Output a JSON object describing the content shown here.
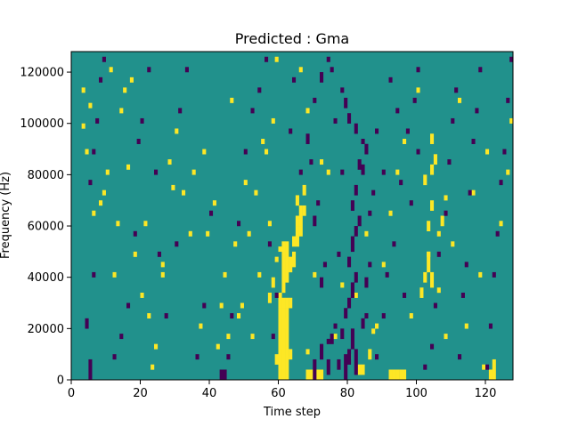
{
  "chart_data": {
    "type": "heatmap",
    "title": "Predicted : Gma",
    "xlabel": "Time step",
    "ylabel": "Frequency (Hz)",
    "xlim": [
      0,
      128
    ],
    "ylim": [
      0,
      128000
    ],
    "xticks": [
      0,
      20,
      40,
      60,
      80,
      100,
      120
    ],
    "xtick_labels": [
      "0",
      "20",
      "40",
      "60",
      "80",
      "100",
      "120"
    ],
    "yticks": [
      0,
      20000,
      40000,
      60000,
      80000,
      100000,
      120000
    ],
    "ytick_labels": [
      "0",
      "20000",
      "40000",
      "60000",
      "80000",
      "100000",
      "120000"
    ],
    "rows": 64,
    "cols": 128,
    "row_height_hz": 2000,
    "value_scale": [
      -1,
      0,
      1
    ],
    "colors": {
      "background": "#21918c",
      "low": "#440154",
      "high": "#fde725"
    },
    "cells": {
      "high": [
        [
          60,
          0,
          14
        ],
        [
          61,
          0,
          14
        ],
        [
          62,
          0,
          12
        ],
        [
          60,
          14,
          3
        ],
        [
          61,
          14,
          2
        ],
        [
          62,
          14,
          2
        ],
        [
          63,
          14,
          2
        ],
        [
          61,
          17,
          10
        ],
        [
          62,
          19,
          8
        ],
        [
          63,
          21,
          3
        ],
        [
          64,
          22,
          3
        ],
        [
          64,
          26,
          2
        ],
        [
          65,
          26,
          4
        ],
        [
          66,
          28,
          2
        ],
        [
          65,
          30,
          2
        ],
        [
          66,
          30,
          4
        ],
        [
          67,
          32,
          2
        ],
        [
          65,
          34,
          2
        ],
        [
          67,
          36,
          2
        ],
        [
          63,
          4,
          2
        ],
        [
          59,
          3,
          2
        ],
        [
          60,
          6,
          2
        ],
        [
          61,
          10,
          2
        ],
        [
          62,
          12,
          2
        ],
        [
          57,
          15,
          2
        ],
        [
          58,
          18,
          2
        ],
        [
          59,
          23,
          1
        ],
        [
          60,
          25,
          1
        ],
        [
          68,
          0,
          2
        ],
        [
          69,
          0,
          2
        ],
        [
          70,
          0,
          2
        ],
        [
          71,
          0,
          2
        ],
        [
          72,
          0,
          2
        ],
        [
          68,
          5,
          1
        ],
        [
          70,
          20,
          1
        ],
        [
          92,
          0,
          2
        ],
        [
          93,
          0,
          2
        ],
        [
          94,
          0,
          2
        ],
        [
          95,
          0,
          2
        ],
        [
          96,
          0,
          2
        ],
        [
          83,
          1,
          2
        ],
        [
          84,
          1,
          2
        ],
        [
          86,
          4,
          2
        ],
        [
          87,
          9,
          1
        ],
        [
          121,
          0,
          2
        ],
        [
          122,
          0,
          4
        ],
        [
          119,
          2,
          1
        ],
        [
          103,
          21,
          4
        ],
        [
          104,
          18,
          3
        ],
        [
          103,
          29,
          2
        ],
        [
          104,
          33,
          2
        ],
        [
          102,
          38,
          2
        ],
        [
          104,
          40,
          2
        ],
        [
          105,
          42,
          2
        ],
        [
          104,
          46,
          2
        ],
        [
          101,
          16,
          2
        ],
        [
          102,
          19,
          2
        ],
        [
          103,
          24,
          1
        ],
        [
          106,
          17,
          1
        ],
        [
          107,
          30,
          2
        ],
        [
          108,
          35,
          1
        ],
        [
          4,
          44,
          1
        ],
        [
          6,
          32,
          1
        ],
        [
          9,
          36,
          1
        ],
        [
          10,
          40,
          1
        ],
        [
          12,
          20,
          1
        ],
        [
          13,
          30,
          1
        ],
        [
          15,
          56,
          1
        ],
        [
          17,
          58,
          1
        ],
        [
          3,
          56,
          1
        ],
        [
          3,
          49,
          1
        ],
        [
          5,
          53,
          1
        ],
        [
          8,
          34,
          1
        ],
        [
          11,
          60,
          1
        ],
        [
          14,
          52,
          1
        ],
        [
          16,
          41,
          1
        ],
        [
          18,
          24,
          1
        ],
        [
          20,
          16,
          1
        ],
        [
          21,
          30,
          1
        ],
        [
          22,
          12,
          1
        ],
        [
          23,
          2,
          1
        ],
        [
          24,
          6,
          1
        ],
        [
          26,
          20,
          1
        ],
        [
          28,
          42,
          1
        ],
        [
          29,
          37,
          1
        ],
        [
          32,
          36,
          1
        ],
        [
          35,
          40,
          1
        ],
        [
          37,
          10,
          1
        ],
        [
          39,
          28,
          1
        ],
        [
          41,
          34,
          1
        ],
        [
          42,
          6,
          1
        ],
        [
          44,
          20,
          1
        ],
        [
          45,
          8,
          1
        ],
        [
          47,
          26,
          1
        ],
        [
          48,
          12,
          1
        ],
        [
          49,
          14,
          1
        ],
        [
          50,
          38,
          1
        ],
        [
          52,
          8,
          1
        ],
        [
          54,
          20,
          1
        ],
        [
          55,
          46,
          1
        ],
        [
          57,
          30,
          1
        ],
        [
          58,
          50,
          1
        ],
        [
          59,
          62,
          1
        ],
        [
          66,
          60,
          1
        ],
        [
          68,
          52,
          1
        ],
        [
          72,
          42,
          1
        ],
        [
          74,
          40,
          1
        ],
        [
          76,
          8,
          1
        ],
        [
          78,
          18,
          1
        ],
        [
          80,
          4,
          1
        ],
        [
          82,
          16,
          1
        ],
        [
          85,
          28,
          1
        ],
        [
          88,
          10,
          1
        ],
        [
          90,
          22,
          1
        ],
        [
          92,
          32,
          1
        ],
        [
          94,
          40,
          1
        ],
        [
          96,
          46,
          1
        ],
        [
          98,
          12,
          1
        ],
        [
          100,
          56,
          1
        ],
        [
          106,
          28,
          1
        ],
        [
          108,
          8,
          1
        ],
        [
          110,
          26,
          1
        ],
        [
          112,
          54,
          1
        ],
        [
          114,
          10,
          1
        ],
        [
          116,
          36,
          1
        ],
        [
          118,
          20,
          1
        ],
        [
          120,
          44,
          1
        ],
        [
          124,
          30,
          1
        ],
        [
          126,
          40,
          1
        ],
        [
          127,
          50,
          1
        ],
        [
          26,
          22,
          1
        ],
        [
          30,
          48,
          1
        ],
        [
          34,
          28,
          1
        ],
        [
          38,
          44,
          1
        ],
        [
          43,
          14,
          1
        ],
        [
          46,
          54,
          1
        ],
        [
          51,
          28,
          1
        ],
        [
          53,
          36,
          1
        ],
        [
          56,
          44,
          1
        ]
      ],
      "low": [
        [
          70,
          0,
          4
        ],
        [
          72,
          4,
          3
        ],
        [
          74,
          1,
          3
        ],
        [
          75,
          7,
          2
        ],
        [
          77,
          2,
          2
        ],
        [
          78,
          8,
          2
        ],
        [
          79,
          0,
          5
        ],
        [
          80,
          3,
          3
        ],
        [
          81,
          6,
          4
        ],
        [
          82,
          1,
          5
        ],
        [
          79,
          12,
          2
        ],
        [
          80,
          14,
          2
        ],
        [
          81,
          16,
          3
        ],
        [
          82,
          19,
          2
        ],
        [
          80,
          22,
          2
        ],
        [
          81,
          25,
          3
        ],
        [
          82,
          28,
          2
        ],
        [
          83,
          30,
          2
        ],
        [
          81,
          33,
          2
        ],
        [
          82,
          36,
          2
        ],
        [
          83,
          41,
          2
        ],
        [
          84,
          40,
          2
        ],
        [
          85,
          44,
          2
        ],
        [
          84,
          46,
          1
        ],
        [
          82,
          48,
          2
        ],
        [
          80,
          50,
          2
        ],
        [
          79,
          53,
          2
        ],
        [
          78,
          56,
          1
        ],
        [
          86,
          32,
          1
        ],
        [
          87,
          36,
          1
        ],
        [
          85,
          18,
          2
        ],
        [
          86,
          22,
          1
        ],
        [
          84,
          10,
          2
        ],
        [
          85,
          12,
          1
        ],
        [
          72,
          18,
          2
        ],
        [
          73,
          22,
          1
        ],
        [
          70,
          30,
          2
        ],
        [
          71,
          34,
          1
        ],
        [
          69,
          42,
          1
        ],
        [
          68,
          46,
          2
        ],
        [
          70,
          54,
          1
        ],
        [
          72,
          58,
          2
        ],
        [
          74,
          62,
          1
        ],
        [
          74,
          7,
          1
        ],
        [
          76,
          10,
          1
        ],
        [
          77,
          24,
          1
        ],
        [
          78,
          40,
          1
        ],
        [
          76,
          50,
          1
        ],
        [
          75,
          60,
          1
        ],
        [
          5,
          0,
          4
        ],
        [
          4,
          10,
          2
        ],
        [
          6,
          20,
          1
        ],
        [
          5,
          38,
          1
        ],
        [
          6,
          44,
          1
        ],
        [
          7,
          50,
          1
        ],
        [
          8,
          58,
          1
        ],
        [
          9,
          62,
          1
        ],
        [
          12,
          4,
          1
        ],
        [
          14,
          8,
          1
        ],
        [
          16,
          14,
          1
        ],
        [
          18,
          28,
          1
        ],
        [
          19,
          46,
          1
        ],
        [
          20,
          50,
          1
        ],
        [
          22,
          60,
          1
        ],
        [
          24,
          40,
          1
        ],
        [
          25,
          24,
          1
        ],
        [
          27,
          12,
          1
        ],
        [
          30,
          26,
          1
        ],
        [
          31,
          52,
          1
        ],
        [
          33,
          60,
          1
        ],
        [
          36,
          4,
          1
        ],
        [
          38,
          14,
          1
        ],
        [
          40,
          32,
          1
        ],
        [
          43,
          0,
          2
        ],
        [
          44,
          0,
          2
        ],
        [
          45,
          4,
          1
        ],
        [
          46,
          12,
          1
        ],
        [
          48,
          30,
          1
        ],
        [
          50,
          44,
          1
        ],
        [
          52,
          52,
          1
        ],
        [
          54,
          56,
          1
        ],
        [
          56,
          62,
          1
        ],
        [
          58,
          8,
          1
        ],
        [
          59,
          16,
          1
        ],
        [
          57,
          26,
          1
        ],
        [
          63,
          48,
          1
        ],
        [
          64,
          58,
          1
        ],
        [
          66,
          40,
          1
        ],
        [
          88,
          4,
          1
        ],
        [
          90,
          12,
          1
        ],
        [
          91,
          20,
          1
        ],
        [
          93,
          26,
          1
        ],
        [
          95,
          38,
          1
        ],
        [
          97,
          48,
          1
        ],
        [
          99,
          54,
          1
        ],
        [
          100,
          60,
          1
        ],
        [
          102,
          2,
          1
        ],
        [
          104,
          6,
          1
        ],
        [
          105,
          14,
          1
        ],
        [
          106,
          24,
          1
        ],
        [
          108,
          32,
          1
        ],
        [
          109,
          42,
          1
        ],
        [
          110,
          50,
          1
        ],
        [
          111,
          56,
          1
        ],
        [
          112,
          4,
          1
        ],
        [
          113,
          16,
          1
        ],
        [
          114,
          22,
          1
        ],
        [
          115,
          36,
          1
        ],
        [
          116,
          46,
          1
        ],
        [
          117,
          52,
          1
        ],
        [
          118,
          60,
          1
        ],
        [
          120,
          2,
          1
        ],
        [
          121,
          10,
          1
        ],
        [
          122,
          20,
          1
        ],
        [
          123,
          28,
          1
        ],
        [
          124,
          38,
          1
        ],
        [
          125,
          44,
          1
        ],
        [
          126,
          54,
          1
        ],
        [
          127,
          62,
          1
        ],
        [
          96,
          16,
          1
        ],
        [
          98,
          34,
          1
        ],
        [
          100,
          44,
          1
        ],
        [
          94,
          52,
          1
        ],
        [
          92,
          58,
          1
        ],
        [
          90,
          40,
          1
        ],
        [
          88,
          48,
          1
        ]
      ]
    }
  }
}
